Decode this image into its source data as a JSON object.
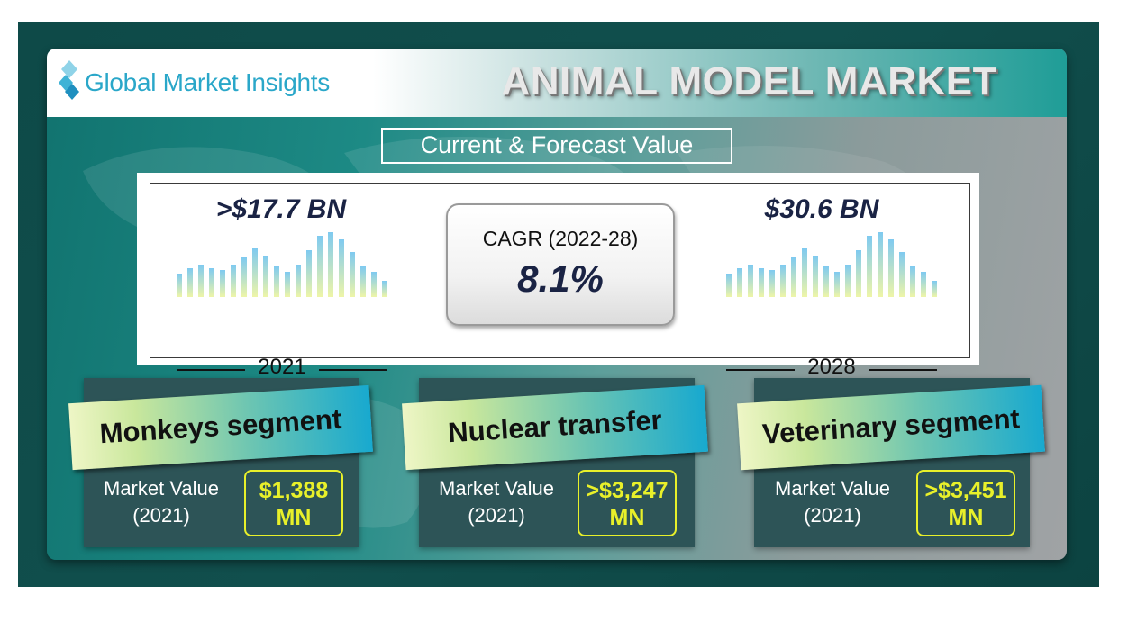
{
  "header": {
    "logo_text": "Global Market Insights",
    "title": "ANIMAL MODEL MARKET"
  },
  "subtitle": "Current & Forecast Value",
  "current": {
    "value": ">$17.7 BN",
    "year": "2021"
  },
  "forecast": {
    "value": "$30.6 BN",
    "year": "2028"
  },
  "cagr": {
    "label": "CAGR (2022-28)",
    "value": "8.1%"
  },
  "segments": [
    {
      "title": "Monkeys segment",
      "label_line1": "Market Value",
      "label_line2": "(2021)",
      "value_line1": "$1,388",
      "value_line2": "MN"
    },
    {
      "title": "Nuclear transfer",
      "label_line1": "Market Value",
      "label_line2": "(2021)",
      "value_line1": ">$3,247",
      "value_line2": "MN"
    },
    {
      "title": "Veterinary segment",
      "label_line1": "Market Value",
      "label_line2": "(2021)",
      "value_line1": ">$3,451",
      "value_line2": "MN"
    }
  ],
  "colors": {
    "frame": "#0e4a48",
    "logo_text": "#2aa7c9",
    "value_text": "#1a2344",
    "highlight": "#e8f02a",
    "segment_panel": "#2d5457"
  }
}
